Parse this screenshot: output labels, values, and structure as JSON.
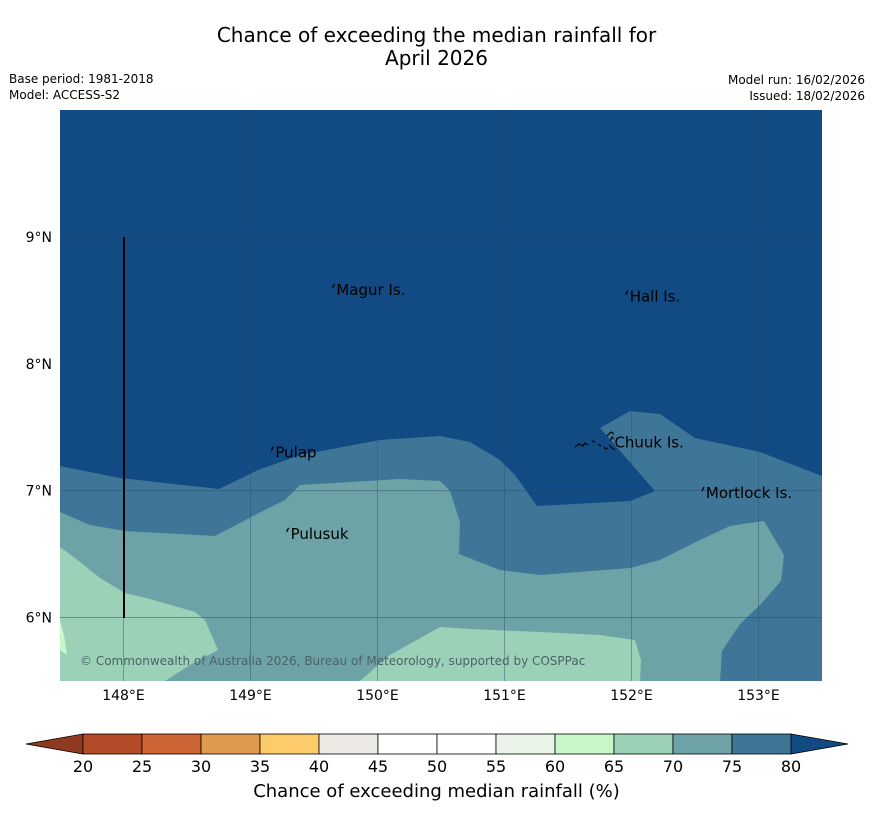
{
  "header": {
    "title_line1": "Chance of exceeding the median rainfall for",
    "title_line2": "April 2026",
    "base_period": "Base period: 1981-2018",
    "model": "Model: ACCESS-S2",
    "model_run": "Model run: 16/02/2026",
    "issued": "Issued: 18/02/2026"
  },
  "map": {
    "lon_range": [
      147.5,
      153.5
    ],
    "lat_range": [
      5.5,
      10.0
    ],
    "lon_ticks": [
      148,
      149,
      150,
      151,
      152,
      153
    ],
    "lon_tick_labels": [
      "148°E",
      "149°E",
      "150°E",
      "151°E",
      "152°E",
      "153°E"
    ],
    "lat_ticks": [
      6,
      7,
      8,
      9
    ],
    "lat_tick_labels": [
      "6°N",
      "7°N",
      "8°N",
      "9°N"
    ],
    "places": [
      {
        "name": "Magur Is.",
        "lon": 149.66,
        "lat": 8.58
      },
      {
        "name": "Hall Is.",
        "lon": 151.97,
        "lat": 8.53
      },
      {
        "name": "Pulap",
        "lon": 149.18,
        "lat": 7.3
      },
      {
        "name": "Chuuk Is.",
        "lon": 151.85,
        "lat": 7.38
      },
      {
        "name": "Mortlock Is.",
        "lon": 152.57,
        "lat": 6.98
      },
      {
        "name": "Pulusuk",
        "lon": 149.3,
        "lat": 6.66
      }
    ],
    "copyright": "© Commonwealth of Australia 2026, Bureau of Meteorology, supported by COSPPac"
  },
  "colorbar": {
    "title": "Chance of exceeding median rainfall (%)",
    "levels": [
      "20",
      "25",
      "30",
      "35",
      "40",
      "45",
      "50",
      "55",
      "60",
      "65",
      "70",
      "75",
      "80"
    ],
    "colors": [
      "#b34a28",
      "#cf6535",
      "#e09a50",
      "#fdcb6a",
      "#ece9e5",
      "#ffffff",
      "#ffffff",
      "#e9f3e8",
      "#c8f6c8",
      "#9bd1b6",
      "#6da3a6",
      "#3f7597"
    ],
    "under_color": "#8f3a20",
    "over_color": "#124a83"
  }
}
